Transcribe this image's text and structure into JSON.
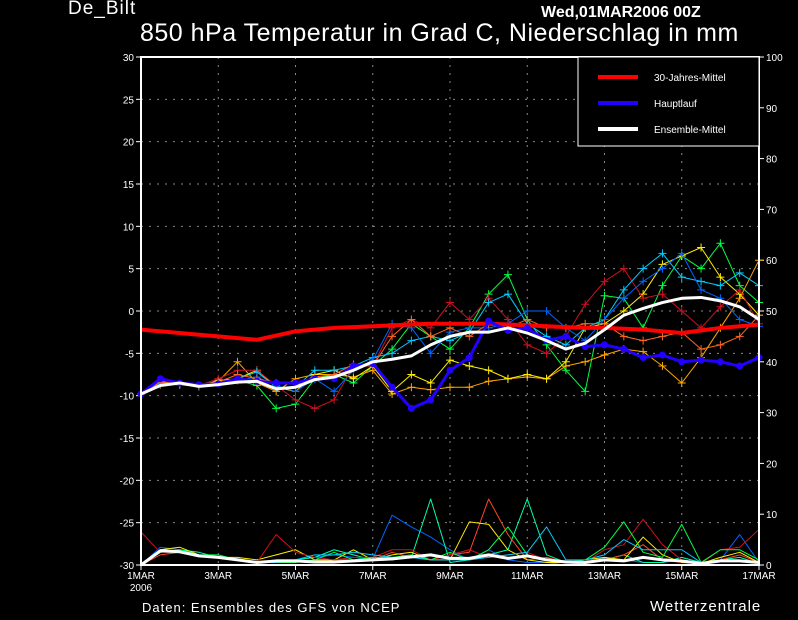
{
  "header": {
    "station": "De_Bilt",
    "run": "Wed,01MAR2006 00Z",
    "title": "850 hPa Temperatur in Grad C, Niederschlag in mm"
  },
  "footer": {
    "source": "Daten: Ensembles des GFS von NCEP",
    "brand": "Wetterzentrale"
  },
  "chart_data": {
    "type": "line",
    "title": "850 hPa Temperatur in Grad C, Niederschlag in mm",
    "x_step_hours": 12,
    "x_tick_labels": [
      "1MAR",
      "3MAR",
      "5MAR",
      "7MAR",
      "9MAR",
      "11MAR",
      "13MAR",
      "15MAR",
      "17MAR"
    ],
    "x_year_label": "2006",
    "x_range": [
      "1MAR2006 00Z",
      "17MAR2006 00Z"
    ],
    "y_left": {
      "range": [
        -30,
        30
      ],
      "ticks": [
        -30,
        -25,
        -20,
        -15,
        -10,
        -5,
        0,
        5,
        10,
        15,
        20,
        25,
        30
      ]
    },
    "y_right": {
      "range": [
        0,
        100
      ],
      "ticks": [
        0,
        10,
        20,
        30,
        40,
        50,
        60,
        70,
        80,
        90,
        100
      ]
    },
    "grid": true,
    "legend_position": "top-right",
    "colors": {
      "climate": "#ff0000",
      "main": "#2200ff",
      "mean": "#ffffff",
      "grid": "#888888"
    },
    "series": [
      {
        "name": "30-Jahres-Mittel",
        "axis": "left",
        "values": [
          -2.2,
          -2.4,
          -2.6,
          -2.8,
          -3.0,
          -3.2,
          -3.4,
          -2.9,
          -2.4,
          -2.2,
          -2.0,
          -1.9,
          -1.8,
          -1.7,
          -1.6,
          -1.5,
          -1.5,
          -1.5,
          -1.5,
          -1.6,
          -1.7,
          -1.8,
          -1.9,
          -2.0,
          -2.0,
          -2.1,
          -2.2,
          -2.4,
          -2.6,
          -2.3,
          -2.0,
          -1.8,
          -1.6
        ]
      },
      {
        "name": "Hauptlauf",
        "axis": "left",
        "values": [
          -9.8,
          -8.0,
          -8.5,
          -8.7,
          -8.6,
          -8.0,
          -8.3,
          -8.5,
          -8.5,
          -8.0,
          -8.0,
          -6.5,
          -6.2,
          -9.0,
          -11.5,
          -10.5,
          -7.0,
          -5.5,
          -1.2,
          -2.3,
          -2.0,
          -3.5,
          -3.0,
          -4.2,
          -4.0,
          -4.5,
          -5.5,
          -5.2,
          -6.0,
          -5.8,
          -6.0,
          -6.5,
          -5.5
        ]
      },
      {
        "name": "Ensemble-Mittel",
        "axis": "left",
        "values": [
          -9.8,
          -8.8,
          -8.5,
          -8.9,
          -8.7,
          -8.4,
          -8.3,
          -9.2,
          -9.0,
          -8.1,
          -7.8,
          -7.0,
          -6.0,
          -5.7,
          -5.3,
          -4.0,
          -3.0,
          -2.5,
          -2.5,
          -2.0,
          -2.6,
          -3.5,
          -4.5,
          -3.8,
          -2.2,
          -0.5,
          0.3,
          1.0,
          1.5,
          1.6,
          1.2,
          0.5,
          -1.0
        ]
      }
    ],
    "members": [
      {
        "color": "#00ff44",
        "values": [
          -9.8,
          -8.5,
          -8.6,
          -8.8,
          -8.5,
          -8.2,
          -8.8,
          -11.5,
          -11.0,
          -8.0,
          -7.5,
          -8.5,
          -6.5,
          -4.5,
          -1.5,
          -3.0,
          -4.5,
          -2.0,
          2.0,
          4.3,
          -1.0,
          -4.0,
          -7.0,
          -9.5,
          1.8,
          1.5,
          -2.0,
          3.0,
          6.5,
          5.0,
          8.0,
          3.0,
          1.0
        ]
      },
      {
        "color": "#ffa500",
        "values": [
          -9.8,
          -8.7,
          -8.6,
          -8.8,
          -8.3,
          -6.0,
          -8.5,
          -9.5,
          -8.0,
          -7.5,
          -7.5,
          -7.8,
          -7.0,
          -9.8,
          -9.0,
          -9.3,
          -9.0,
          -9.0,
          -8.3,
          -8.0,
          -7.8,
          -8.0,
          -6.5,
          -6.0,
          -5.2,
          -4.5,
          -4.8,
          -6.5,
          -8.5,
          -5.5,
          -2.0,
          1.5,
          6.0
        ]
      },
      {
        "color": "#ffee00",
        "values": [
          -9.8,
          -8.3,
          -8.7,
          -8.9,
          -8.2,
          -8.0,
          -7.0,
          -9.0,
          -9.5,
          -7.5,
          -7.0,
          -8.0,
          -6.5,
          -9.5,
          -7.5,
          -8.5,
          -5.8,
          -6.5,
          -7.0,
          -8.0,
          -7.5,
          -8.0,
          -6.0,
          -2.0,
          -1.5,
          0.0,
          2.0,
          5.5,
          6.5,
          7.5,
          4.0,
          2.0,
          -0.5
        ]
      },
      {
        "color": "#cc1122",
        "values": [
          -9.8,
          -8.2,
          -8.6,
          -8.8,
          -8.0,
          -7.0,
          -7.0,
          -8.8,
          -10.5,
          -11.5,
          -10.5,
          -6.5,
          -6.5,
          -2.0,
          -1.0,
          -2.0,
          1.0,
          -1.0,
          1.5,
          -1.0,
          -4.0,
          -5.0,
          -3.0,
          0.8,
          3.5,
          5.0,
          1.5,
          2.0,
          0.0,
          -2.0,
          0.5,
          2.5,
          -1.5
        ]
      },
      {
        "color": "#00ccff",
        "values": [
          -9.8,
          -8.5,
          -8.7,
          -8.9,
          -8.5,
          -8.0,
          -7.2,
          -9.0,
          -9.0,
          -7.0,
          -7.0,
          -6.5,
          -5.5,
          -5.0,
          -3.5,
          -3.0,
          -3.5,
          -2.5,
          1.0,
          2.0,
          -1.5,
          -3.0,
          -4.0,
          -2.0,
          -1.0,
          2.5,
          5.0,
          6.8,
          4.0,
          3.5,
          3.0,
          4.5,
          3.0
        ]
      },
      {
        "color": "#0066ff",
        "values": [
          -9.8,
          -8.6,
          -8.6,
          -8.9,
          -8.4,
          -8.2,
          -7.8,
          -8.8,
          -9.5,
          -8.0,
          -9.5,
          -7.0,
          -5.8,
          -1.5,
          -2.0,
          -5.0,
          -2.5,
          -2.0,
          -2.0,
          -1.5,
          0.0,
          0.0,
          -2.0,
          -3.5,
          -1.0,
          1.5,
          3.5,
          5.0,
          6.8,
          2.5,
          1.5,
          -1.0,
          -1.8
        ]
      },
      {
        "color": "#ff6622",
        "values": [
          -9.8,
          -8.4,
          -8.6,
          -8.8,
          -8.4,
          -7.5,
          -8.0,
          -8.5,
          -8.6,
          -7.8,
          -7.5,
          -6.3,
          -6.5,
          -3.0,
          -1.0,
          -3.0,
          -2.0,
          -3.0,
          -1.5,
          -2.0,
          -1.0,
          -2.0,
          -2.0,
          -1.5,
          -1.5,
          -3.0,
          -3.5,
          -3.0,
          -2.5,
          -4.5,
          -4.0,
          -3.0,
          -0.5
        ]
      }
    ],
    "precip_mean": [
      0,
      2.8,
      2.6,
      1.8,
      1.5,
      1.0,
      0.5,
      0.8,
      0.8,
      0.6,
      0.6,
      0.8,
      1.0,
      1.2,
      1.6,
      2.0,
      1.3,
      1.3,
      2.0,
      1.3,
      1.8,
      1.0,
      0.6,
      0.5,
      1.0,
      0.8,
      1.5,
      1.0,
      0.8,
      0.3,
      0.8,
      0.8,
      0.5
    ],
    "precip_members": [
      {
        "color": "#0066ff",
        "values": [
          0,
          3.5,
          3.0,
          2.0,
          1.5,
          1.0,
          0.5,
          0.5,
          1.0,
          1.5,
          2.0,
          1.5,
          1.2,
          9.8,
          7.5,
          5.5,
          3.0,
          1.0,
          3.0,
          1.0,
          0.5,
          0.5,
          0.0,
          0.5,
          1.5,
          1.0,
          0.5,
          0.5,
          1.0,
          0.5,
          1.0,
          6.0,
          0.5
        ]
      },
      {
        "color": "#00ffaa",
        "values": [
          0,
          2.5,
          3.0,
          2.5,
          1.5,
          1.0,
          0.5,
          0.5,
          1.0,
          1.5,
          3.0,
          2.0,
          1.0,
          1.0,
          1.5,
          13.0,
          0.5,
          1.0,
          2.0,
          3.0,
          13.0,
          2.0,
          0.5,
          0.5,
          1.0,
          2.0,
          0.5,
          0.5,
          1.5,
          0.5,
          1.0,
          1.5,
          0.3
        ]
      },
      {
        "color": "#ff4422",
        "values": [
          0,
          2.0,
          2.5,
          2.0,
          1.5,
          1.0,
          0.5,
          1.0,
          1.0,
          0.5,
          1.0,
          1.0,
          1.0,
          2.5,
          1.5,
          1.0,
          2.0,
          2.5,
          13.0,
          6.0,
          1.0,
          1.5,
          0.5,
          0.5,
          1.0,
          2.0,
          4.0,
          1.0,
          0.5,
          0.3,
          1.0,
          2.0,
          0.5
        ]
      },
      {
        "color": "#ffee00",
        "values": [
          0,
          3.0,
          3.5,
          2.0,
          1.5,
          1.5,
          1.0,
          2.0,
          3.0,
          1.0,
          1.0,
          3.0,
          1.0,
          2.0,
          2.5,
          1.0,
          1.0,
          8.5,
          8.0,
          3.0,
          1.0,
          0.5,
          0.5,
          1.0,
          1.5,
          1.0,
          5.5,
          2.0,
          0.5,
          0.3,
          1.5,
          2.5,
          0.5
        ]
      },
      {
        "color": "#cc1122",
        "values": [
          6.5,
          2.5,
          2.5,
          2.0,
          1.5,
          1.0,
          0.5,
          6.0,
          2.5,
          1.5,
          1.0,
          1.5,
          1.5,
          3.0,
          3.0,
          1.0,
          2.0,
          3.0,
          1.5,
          2.0,
          2.5,
          1.0,
          0.5,
          0.5,
          3.0,
          4.0,
          9.0,
          4.0,
          1.0,
          0.3,
          3.0,
          3.5,
          7.0
        ]
      },
      {
        "color": "#00ff44",
        "values": [
          0,
          2.5,
          3.0,
          2.0,
          2.0,
          1.0,
          0.5,
          0.5,
          0.5,
          1.0,
          2.5,
          1.0,
          1.5,
          1.5,
          2.0,
          1.0,
          2.5,
          1.0,
          3.0,
          7.5,
          2.0,
          1.0,
          0.5,
          1.0,
          3.5,
          8.5,
          2.5,
          1.5,
          8.0,
          0.5,
          3.0,
          3.0,
          1.0
        ]
      },
      {
        "color": "#00ccff",
        "values": [
          0,
          2.6,
          2.8,
          2.0,
          1.5,
          1.2,
          0.5,
          0.5,
          1.0,
          2.0,
          2.0,
          2.5,
          2.0,
          1.5,
          1.5,
          1.0,
          1.0,
          1.0,
          1.5,
          2.0,
          2.5,
          7.5,
          1.0,
          1.0,
          2.0,
          5.0,
          3.0,
          3.0,
          3.0,
          0.5,
          1.0,
          1.0,
          0.5
        ]
      }
    ]
  }
}
